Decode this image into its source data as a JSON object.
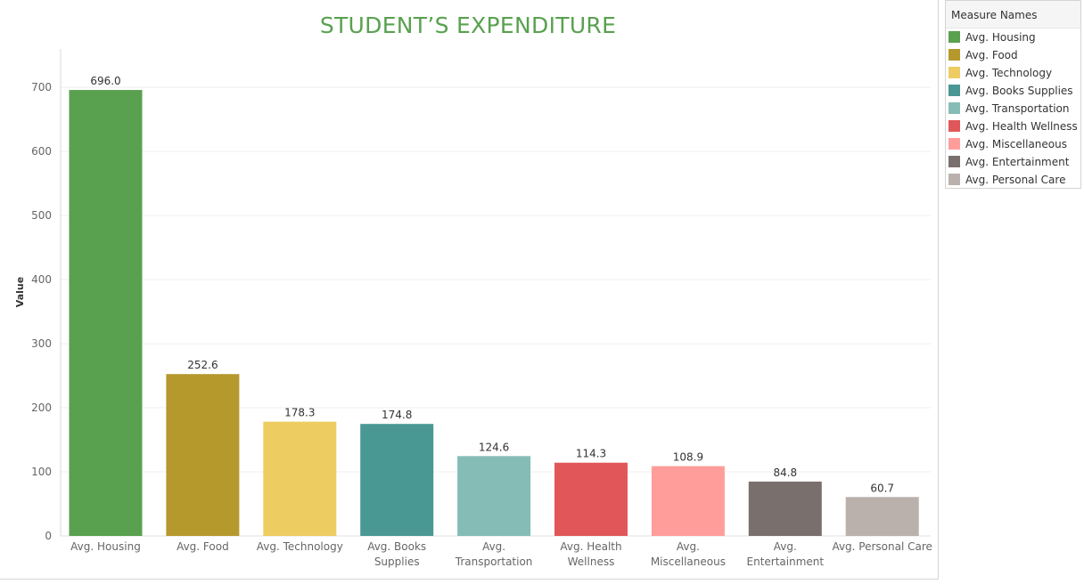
{
  "chart_data": {
    "type": "bar",
    "title": "STUDENT’S EXPENDITURE",
    "ylabel": "Value",
    "xlabel": "",
    "ylim": [
      0,
      760
    ],
    "yticks": [
      0,
      100,
      200,
      300,
      400,
      500,
      600,
      700
    ],
    "grid": true,
    "legend_position": "right",
    "legend_title": "Measure Names",
    "categories": [
      "Avg. Housing",
      "Avg. Food",
      "Avg. Technology",
      "Avg. Books Supplies",
      "Avg. Transportation",
      "Avg. Health Wellness",
      "Avg. Miscellaneous",
      "Avg. Entertainment",
      "Avg. Personal Care"
    ],
    "axis_labels": [
      [
        "Avg. Housing"
      ],
      [
        "Avg. Food"
      ],
      [
        "Avg. Technology"
      ],
      [
        "Avg. Books",
        "Supplies"
      ],
      [
        "Avg.",
        "Transportation"
      ],
      [
        "Avg. Health",
        "Wellness"
      ],
      [
        "Avg.",
        "Miscellaneous"
      ],
      [
        "Avg.",
        "Entertainment"
      ],
      [
        "Avg. Personal Care"
      ]
    ],
    "values": [
      696.0,
      252.6,
      178.3,
      174.8,
      124.6,
      114.3,
      108.9,
      84.8,
      60.7
    ],
    "value_labels": [
      "696.0",
      "252.6",
      "178.3",
      "174.8",
      "124.6",
      "114.3",
      "108.9",
      "84.8",
      "60.7"
    ],
    "colors": [
      "#59a14f",
      "#b6992d",
      "#edcc62",
      "#499894",
      "#86bcb6",
      "#e15759",
      "#ff9d9a",
      "#79706e",
      "#bab0ac"
    ]
  },
  "title_color": "#59a14f"
}
